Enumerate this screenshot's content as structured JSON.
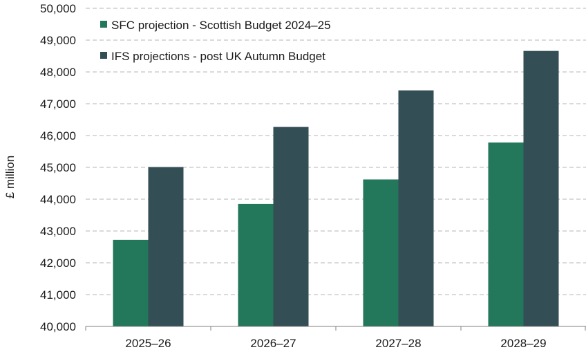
{
  "chart_data": {
    "type": "bar",
    "title": "",
    "xlabel": "",
    "ylabel": "£ million",
    "categories": [
      "2025–26",
      "2026–27",
      "2027–28",
      "2028–29"
    ],
    "ylim": [
      40000,
      50000
    ],
    "yticks": [
      40000,
      41000,
      42000,
      43000,
      44000,
      45000,
      46000,
      47000,
      48000,
      49000,
      50000
    ],
    "ytick_labels": [
      "40,000",
      "41,000",
      "42,000",
      "43,000",
      "44,000",
      "45,000",
      "46,000",
      "47,000",
      "48,000",
      "49,000",
      "50,000"
    ],
    "grid": true,
    "legend_position": "top-left",
    "series": [
      {
        "name": "SFC projection - Scottish Budget 2024–25",
        "color": "#23775a",
        "values": [
          42720,
          43850,
          44620,
          45780
        ]
      },
      {
        "name": "IFS projections - post UK Autumn Budget",
        "color": "#334e55",
        "values": [
          45010,
          46270,
          47420,
          48660
        ]
      }
    ]
  }
}
